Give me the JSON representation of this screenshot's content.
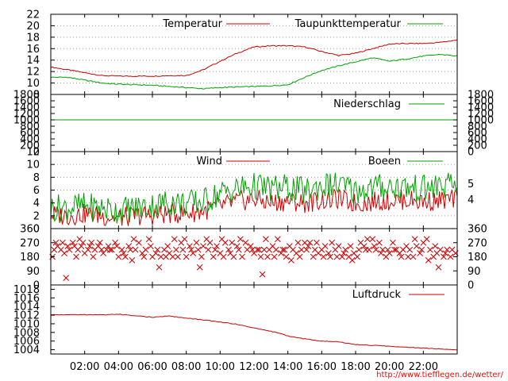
{
  "credit": "http://www.tiefflegen.de/wetter/",
  "x_axis": {
    "tick_labels": [
      "02:00",
      "04:00",
      "06:00",
      "08:00",
      "10:00",
      "12:00",
      "14:00",
      "16:00",
      "18:00",
      "20:00",
      "22:00"
    ],
    "tick_hours": [
      2,
      4,
      6,
      8,
      10,
      12,
      14,
      16,
      18,
      20,
      22
    ],
    "range_hours": [
      0,
      24
    ]
  },
  "chart_data": [
    {
      "type": "line",
      "panel": "temperature",
      "ylim": [
        8,
        22
      ],
      "yticks": [
        8,
        10,
        12,
        14,
        16,
        18,
        20,
        22
      ],
      "grid": true,
      "legend_position": "top",
      "x": [
        0,
        1,
        2,
        3,
        4,
        5,
        6,
        7,
        8,
        9,
        10,
        11,
        12,
        13,
        14,
        15,
        16,
        17,
        18,
        19,
        20,
        21,
        22,
        23,
        24
      ],
      "series": [
        {
          "name": "Temperatur",
          "color": "#cc0000",
          "values": [
            12.8,
            12.3,
            11.8,
            11.3,
            11.2,
            11.2,
            11.2,
            11.3,
            11.3,
            12.3,
            13.8,
            15.2,
            16.3,
            16.5,
            16.5,
            16.3,
            15.5,
            14.8,
            15.2,
            16.0,
            16.8,
            16.9,
            16.9,
            17.1,
            17.5
          ]
        },
        {
          "name": "Taupunkttemperatur",
          "color": "#00a000",
          "values": [
            11.0,
            11.0,
            10.5,
            10.0,
            9.8,
            9.7,
            9.6,
            9.4,
            9.2,
            9.0,
            9.2,
            9.3,
            9.4,
            9.5,
            9.7,
            11.0,
            12.2,
            13.0,
            13.7,
            14.4,
            13.8,
            14.2,
            14.7,
            15.0,
            14.7
          ]
        }
      ]
    },
    {
      "type": "line",
      "panel": "precipitation",
      "ylim": [
        0,
        1800
      ],
      "yticks": [
        0,
        200,
        400,
        600,
        800,
        1000,
        1200,
        1400,
        1600,
        1800
      ],
      "legend_position": "top-right",
      "x": [
        0,
        24
      ],
      "series": [
        {
          "name": "Niederschlag",
          "color": "#00a000",
          "values": [
            1000,
            1000
          ]
        }
      ]
    },
    {
      "type": "line",
      "panel": "wind",
      "ylim": [
        0,
        12
      ],
      "yticks": [
        0,
        2,
        4,
        6,
        8,
        10,
        12
      ],
      "right_axis_labels": [
        "5",
        "4"
      ],
      "right_axis_values": [
        7,
        4.5
      ],
      "grid": true,
      "legend_position": "top-right",
      "x": [
        0,
        1,
        2,
        3,
        4,
        5,
        6,
        7,
        8,
        9,
        10,
        11,
        12,
        13,
        14,
        15,
        16,
        17,
        18,
        19,
        20,
        21,
        22,
        23,
        24
      ],
      "series": [
        {
          "name": "Wind",
          "color": "#cc0000",
          "values": [
            2.2,
            2.0,
            2.3,
            2.0,
            1.6,
            2.0,
            2.1,
            2.3,
            2.4,
            2.7,
            3.5,
            4.2,
            4.6,
            4.0,
            4.3,
            4.0,
            4.4,
            4.6,
            3.9,
            4.2,
            4.4,
            4.5,
            4.2,
            4.4,
            4.5
          ]
        },
        {
          "name": "Boeen",
          "color": "#00a000",
          "values": [
            3.2,
            3.3,
            3.5,
            3.2,
            2.8,
            3.2,
            3.6,
            4.2,
            3.9,
            4.2,
            5.5,
            6.2,
            6.6,
            6.2,
            6.4,
            5.8,
            6.7,
            6.8,
            5.9,
            6.4,
            6.6,
            6.4,
            6.2,
            6.6,
            6.7
          ]
        }
      ]
    },
    {
      "type": "scatter",
      "panel": "wind_direction",
      "ylim": [
        0,
        360
      ],
      "yticks": [
        0,
        90,
        180,
        270,
        360
      ],
      "marker_color": "#cc0000",
      "points": [
        [
          0.1,
          180
        ],
        [
          0.2,
          225
        ],
        [
          0.3,
          270
        ],
        [
          0.4,
          248
        ],
        [
          0.6,
          225
        ],
        [
          0.7,
          270
        ],
        [
          0.8,
          202
        ],
        [
          0.9,
          45
        ],
        [
          1.0,
          248
        ],
        [
          1.1,
          225
        ],
        [
          1.3,
          270
        ],
        [
          1.4,
          248
        ],
        [
          1.5,
          180
        ],
        [
          1.6,
          225
        ],
        [
          1.7,
          293
        ],
        [
          1.8,
          248
        ],
        [
          1.9,
          270
        ],
        [
          2.0,
          203
        ],
        [
          2.2,
          225
        ],
        [
          2.3,
          248
        ],
        [
          2.4,
          270
        ],
        [
          2.5,
          180
        ],
        [
          2.6,
          225
        ],
        [
          2.8,
          248
        ],
        [
          2.9,
          270
        ],
        [
          3.0,
          225
        ],
        [
          3.1,
          203
        ],
        [
          3.3,
          225
        ],
        [
          3.4,
          248
        ],
        [
          3.5,
          225
        ],
        [
          3.6,
          225
        ],
        [
          3.8,
          270
        ],
        [
          3.9,
          248
        ],
        [
          4.0,
          180
        ],
        [
          4.2,
          225
        ],
        [
          4.3,
          203
        ],
        [
          4.4,
          180
        ],
        [
          4.6,
          248
        ],
        [
          4.7,
          225
        ],
        [
          4.8,
          158
        ],
        [
          4.9,
          293
        ],
        [
          5.0,
          225
        ],
        [
          5.2,
          270
        ],
        [
          5.4,
          203
        ],
        [
          5.5,
          180
        ],
        [
          5.6,
          225
        ],
        [
          5.8,
          293
        ],
        [
          5.9,
          248
        ],
        [
          6.0,
          180
        ],
        [
          6.2,
          203
        ],
        [
          6.3,
          225
        ],
        [
          6.4,
          113
        ],
        [
          6.5,
          180
        ],
        [
          6.7,
          225
        ],
        [
          6.8,
          180
        ],
        [
          6.9,
          248
        ],
        [
          7.0,
          203
        ],
        [
          7.2,
          180
        ],
        [
          7.3,
          293
        ],
        [
          7.4,
          225
        ],
        [
          7.5,
          180
        ],
        [
          7.7,
          270
        ],
        [
          7.8,
          225
        ],
        [
          7.9,
          293
        ],
        [
          8.0,
          180
        ],
        [
          8.2,
          248
        ],
        [
          8.3,
          225
        ],
        [
          8.4,
          203
        ],
        [
          8.6,
          270
        ],
        [
          8.7,
          225
        ],
        [
          8.8,
          113
        ],
        [
          8.9,
          180
        ],
        [
          9.0,
          248
        ],
        [
          9.2,
          293
        ],
        [
          9.3,
          225
        ],
        [
          9.4,
          270
        ],
        [
          9.6,
          180
        ],
        [
          9.7,
          225
        ],
        [
          9.8,
          248
        ],
        [
          10.0,
          203
        ],
        [
          10.1,
          293
        ],
        [
          10.2,
          180
        ],
        [
          10.3,
          270
        ],
        [
          10.5,
          225
        ],
        [
          10.6,
          203
        ],
        [
          10.7,
          270
        ],
        [
          10.8,
          180
        ],
        [
          11.0,
          248
        ],
        [
          11.1,
          225
        ],
        [
          11.2,
          293
        ],
        [
          11.3,
          180
        ],
        [
          11.5,
          270
        ],
        [
          11.6,
          225
        ],
        [
          11.8,
          248
        ],
        [
          11.9,
          225
        ],
        [
          12.0,
          203
        ],
        [
          12.2,
          225
        ],
        [
          12.3,
          225
        ],
        [
          12.4,
          180
        ],
        [
          12.5,
          68
        ],
        [
          12.6,
          225
        ],
        [
          12.7,
          293
        ],
        [
          12.8,
          180
        ],
        [
          12.9,
          225
        ],
        [
          13.1,
          248
        ],
        [
          13.2,
          180
        ],
        [
          13.3,
          225
        ],
        [
          13.4,
          293
        ],
        [
          13.6,
          203
        ],
        [
          13.7,
          225
        ],
        [
          13.8,
          225
        ],
        [
          13.9,
          180
        ],
        [
          14.1,
          248
        ],
        [
          14.2,
          158
        ],
        [
          14.3,
          225
        ],
        [
          14.5,
          203
        ],
        [
          14.6,
          270
        ],
        [
          14.7,
          180
        ],
        [
          14.8,
          225
        ],
        [
          15.0,
          270
        ],
        [
          15.1,
          225
        ],
        [
          15.2,
          248
        ],
        [
          15.3,
          270
        ],
        [
          15.5,
          180
        ],
        [
          15.6,
          225
        ],
        [
          15.7,
          270
        ],
        [
          15.8,
          203
        ],
        [
          16.0,
          225
        ],
        [
          16.1,
          180
        ],
        [
          16.2,
          248
        ],
        [
          16.4,
          203
        ],
        [
          16.5,
          180
        ],
        [
          16.6,
          270
        ],
        [
          16.8,
          225
        ],
        [
          16.9,
          180
        ],
        [
          17.0,
          248
        ],
        [
          17.2,
          180
        ],
        [
          17.3,
          203
        ],
        [
          17.4,
          225
        ],
        [
          17.6,
          180
        ],
        [
          17.7,
          248
        ],
        [
          17.8,
          158
        ],
        [
          17.9,
          203
        ],
        [
          18.1,
          180
        ],
        [
          18.2,
          225
        ],
        [
          18.3,
          270
        ],
        [
          18.5,
          248
        ],
        [
          18.6,
          225
        ],
        [
          18.7,
          293
        ],
        [
          18.8,
          225
        ],
        [
          19.0,
          293
        ],
        [
          19.1,
          248
        ],
        [
          19.2,
          225
        ],
        [
          19.4,
          270
        ],
        [
          19.5,
          203
        ],
        [
          19.6,
          225
        ],
        [
          19.8,
          180
        ],
        [
          19.9,
          225
        ],
        [
          20.0,
          203
        ],
        [
          20.2,
          270
        ],
        [
          20.3,
          225
        ],
        [
          20.4,
          225
        ],
        [
          20.6,
          203
        ],
        [
          20.7,
          180
        ],
        [
          20.8,
          225
        ],
        [
          21.0,
          248
        ],
        [
          21.1,
          180
        ],
        [
          21.2,
          225
        ],
        [
          21.4,
          180
        ],
        [
          21.5,
          293
        ],
        [
          21.6,
          248
        ],
        [
          21.8,
          203
        ],
        [
          21.9,
          225
        ],
        [
          22.0,
          270
        ],
        [
          22.2,
          293
        ],
        [
          22.3,
          158
        ],
        [
          22.4,
          225
        ],
        [
          22.6,
          180
        ],
        [
          22.7,
          248
        ],
        [
          22.8,
          203
        ],
        [
          22.9,
          113
        ],
        [
          23.0,
          225
        ],
        [
          23.2,
          180
        ],
        [
          23.3,
          203
        ],
        [
          23.4,
          225
        ],
        [
          23.6,
          180
        ],
        [
          23.7,
          225
        ],
        [
          23.9,
          203
        ]
      ]
    },
    {
      "type": "line",
      "panel": "pressure",
      "ylim": [
        1003,
        1019
      ],
      "yticks": [
        1004,
        1006,
        1008,
        1010,
        1012,
        1014,
        1016,
        1018
      ],
      "legend_position": "top-right",
      "x": [
        0,
        1,
        2,
        3,
        4,
        5,
        6,
        7,
        8,
        9,
        10,
        11,
        12,
        13,
        14,
        15,
        16,
        17,
        18,
        19,
        20,
        21,
        22,
        23,
        24
      ],
      "series": [
        {
          "name": "Luftdruck",
          "color": "#cc0000",
          "values": [
            1012.1,
            1012.1,
            1012.1,
            1012.1,
            1012.2,
            1011.9,
            1011.5,
            1011.8,
            1011.3,
            1010.9,
            1010.4,
            1009.9,
            1009.0,
            1008.3,
            1007.2,
            1006.5,
            1006.0,
            1005.8,
            1005.2,
            1005.0,
            1004.8,
            1004.6,
            1004.4,
            1004.2,
            1004.0
          ]
        }
      ]
    }
  ]
}
